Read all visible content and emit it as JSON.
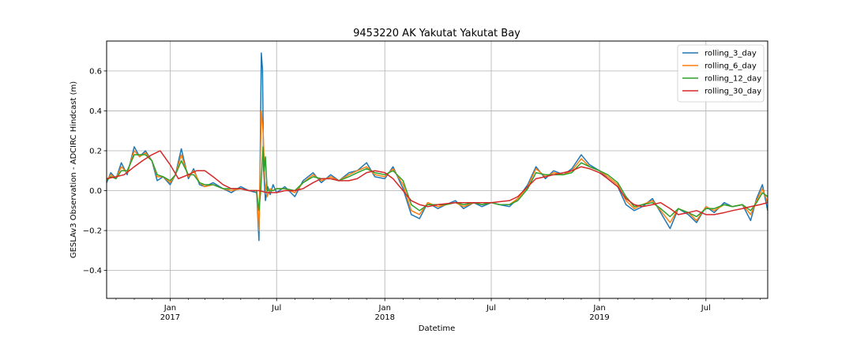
{
  "chart_data": {
    "type": "line",
    "title": "9453220 AK Yakutat Yakutat Bay",
    "xlabel": "Datetime",
    "ylabel": "GESLAv3 Observation - ADCIRC Hindcast (m)",
    "xlim": [
      "2016-09-15",
      "2019-10-14"
    ],
    "ylim": [
      -0.54,
      0.75
    ],
    "grid": true,
    "legend_position": "top-right",
    "x_ticks": [
      {
        "date": "2017-01-01",
        "label": "Jan",
        "year": "2017"
      },
      {
        "date": "2017-07-01",
        "label": "Jul",
        "year": ""
      },
      {
        "date": "2018-01-01",
        "label": "Jan",
        "year": "2018"
      },
      {
        "date": "2018-07-01",
        "label": "Jul",
        "year": ""
      },
      {
        "date": "2019-01-01",
        "label": "Jan",
        "year": "2019"
      },
      {
        "date": "2019-07-01",
        "label": "Jul",
        "year": ""
      }
    ],
    "y_ticks": [
      {
        "value": 0.6,
        "label": "0.6"
      },
      {
        "value": 0.4,
        "label": "0.4"
      },
      {
        "value": 0.2,
        "label": "0.2"
      },
      {
        "value": 0.0,
        "label": "0.0"
      },
      {
        "value": -0.2,
        "label": "−0.2"
      },
      {
        "value": -0.4,
        "label": "−0.4"
      }
    ],
    "series": [
      {
        "name": "rolling_3_day",
        "color": "#1f77b4",
        "x": [
          "2016-09-15",
          "2016-09-22",
          "2016-10-01",
          "2016-10-10",
          "2016-10-20",
          "2016-11-01",
          "2016-11-10",
          "2016-11-20",
          "2016-12-01",
          "2016-12-10",
          "2016-12-20",
          "2017-01-01",
          "2017-01-10",
          "2017-01-20",
          "2017-02-01",
          "2017-02-10",
          "2017-02-20",
          "2017-03-01",
          "2017-03-15",
          "2017-04-01",
          "2017-04-15",
          "2017-05-01",
          "2017-05-15",
          "2017-05-28",
          "2017-06-01",
          "2017-06-03",
          "2017-06-05",
          "2017-06-07",
          "2017-06-09",
          "2017-06-12",
          "2017-06-16",
          "2017-06-20",
          "2017-06-25",
          "2017-07-01",
          "2017-07-15",
          "2017-08-01",
          "2017-08-15",
          "2017-09-01",
          "2017-09-15",
          "2017-10-01",
          "2017-10-15",
          "2017-11-01",
          "2017-11-15",
          "2017-12-01",
          "2017-12-15",
          "2018-01-01",
          "2018-01-15",
          "2018-02-01",
          "2018-02-15",
          "2018-03-01",
          "2018-03-15",
          "2018-04-01",
          "2018-04-15",
          "2018-05-01",
          "2018-05-15",
          "2018-06-01",
          "2018-06-15",
          "2018-07-01",
          "2018-07-15",
          "2018-08-01",
          "2018-08-15",
          "2018-09-01",
          "2018-09-15",
          "2018-10-01",
          "2018-10-15",
          "2018-11-01",
          "2018-11-15",
          "2018-12-01",
          "2018-12-15",
          "2019-01-01",
          "2019-01-15",
          "2019-02-01",
          "2019-02-15",
          "2019-03-01",
          "2019-03-15",
          "2019-04-01",
          "2019-04-15",
          "2019-05-01",
          "2019-05-15",
          "2019-06-01",
          "2019-06-15",
          "2019-07-01",
          "2019-07-15",
          "2019-08-01",
          "2019-08-15",
          "2019-09-01",
          "2019-09-15",
          "2019-09-25",
          "2019-10-05",
          "2019-10-14"
        ],
        "y": [
          0.04,
          0.09,
          0.06,
          0.14,
          0.08,
          0.22,
          0.17,
          0.2,
          0.15,
          0.05,
          0.07,
          0.03,
          0.08,
          0.21,
          0.06,
          0.11,
          0.03,
          0.02,
          0.04,
          0.01,
          -0.01,
          0.02,
          0.0,
          -0.01,
          -0.25,
          0.15,
          0.69,
          0.61,
          0.1,
          -0.05,
          0.02,
          -0.02,
          0.03,
          -0.01,
          0.02,
          -0.03,
          0.05,
          0.09,
          0.04,
          0.08,
          0.05,
          0.09,
          0.1,
          0.14,
          0.07,
          0.06,
          0.12,
          0.01,
          -0.12,
          -0.14,
          -0.06,
          -0.09,
          -0.07,
          -0.05,
          -0.09,
          -0.06,
          -0.08,
          -0.06,
          -0.07,
          -0.08,
          -0.04,
          0.03,
          0.12,
          0.06,
          0.1,
          0.08,
          0.11,
          0.18,
          0.13,
          0.1,
          0.06,
          0.02,
          -0.07,
          -0.1,
          -0.08,
          -0.04,
          -0.11,
          -0.19,
          -0.09,
          -0.12,
          -0.16,
          -0.08,
          -0.11,
          -0.06,
          -0.08,
          -0.07,
          -0.15,
          -0.04,
          0.03,
          -0.1
        ]
      },
      {
        "name": "rolling_6_day",
        "color": "#ff7f0e",
        "x": [
          "2016-09-15",
          "2016-09-22",
          "2016-10-01",
          "2016-10-10",
          "2016-10-20",
          "2016-11-01",
          "2016-11-10",
          "2016-11-20",
          "2016-12-01",
          "2016-12-10",
          "2016-12-20",
          "2017-01-01",
          "2017-01-10",
          "2017-01-20",
          "2017-02-01",
          "2017-02-10",
          "2017-02-20",
          "2017-03-01",
          "2017-03-15",
          "2017-04-01",
          "2017-04-15",
          "2017-05-01",
          "2017-05-15",
          "2017-05-28",
          "2017-06-01",
          "2017-06-03",
          "2017-06-05",
          "2017-06-08",
          "2017-06-11",
          "2017-06-15",
          "2017-06-20",
          "2017-06-25",
          "2017-07-01",
          "2017-07-15",
          "2017-08-01",
          "2017-08-15",
          "2017-09-01",
          "2017-09-15",
          "2017-10-01",
          "2017-10-15",
          "2017-11-01",
          "2017-11-15",
          "2017-12-01",
          "2017-12-15",
          "2018-01-01",
          "2018-01-15",
          "2018-02-01",
          "2018-02-15",
          "2018-03-01",
          "2018-03-15",
          "2018-04-01",
          "2018-04-15",
          "2018-05-01",
          "2018-05-15",
          "2018-06-01",
          "2018-06-15",
          "2018-07-01",
          "2018-07-15",
          "2018-08-01",
          "2018-08-15",
          "2018-09-01",
          "2018-09-15",
          "2018-10-01",
          "2018-10-15",
          "2018-11-01",
          "2018-11-15",
          "2018-12-01",
          "2018-12-15",
          "2019-01-01",
          "2019-01-15",
          "2019-02-01",
          "2019-02-15",
          "2019-03-01",
          "2019-03-15",
          "2019-04-01",
          "2019-04-15",
          "2019-05-01",
          "2019-05-15",
          "2019-06-01",
          "2019-06-15",
          "2019-07-01",
          "2019-07-15",
          "2019-08-01",
          "2019-08-15",
          "2019-09-01",
          "2019-09-15",
          "2019-09-25",
          "2019-10-05",
          "2019-10-14"
        ],
        "y": [
          0.05,
          0.08,
          0.06,
          0.12,
          0.09,
          0.2,
          0.17,
          0.19,
          0.15,
          0.07,
          0.07,
          0.04,
          0.08,
          0.18,
          0.07,
          0.1,
          0.04,
          0.02,
          0.03,
          0.01,
          0.0,
          0.01,
          0.0,
          0.0,
          -0.2,
          0.1,
          0.4,
          0.3,
          0.05,
          -0.03,
          0.01,
          0.0,
          0.01,
          0.01,
          -0.01,
          0.04,
          0.08,
          0.05,
          0.07,
          0.05,
          0.08,
          0.1,
          0.12,
          0.08,
          0.07,
          0.11,
          0.03,
          -0.1,
          -0.12,
          -0.06,
          -0.08,
          -0.07,
          -0.06,
          -0.08,
          -0.06,
          -0.07,
          -0.06,
          -0.07,
          -0.07,
          -0.04,
          0.02,
          0.11,
          0.07,
          0.09,
          0.08,
          0.1,
          0.16,
          0.12,
          0.1,
          0.07,
          0.03,
          -0.05,
          -0.09,
          -0.07,
          -0.05,
          -0.1,
          -0.16,
          -0.09,
          -0.11,
          -0.15,
          -0.08,
          -0.1,
          -0.07,
          -0.08,
          -0.07,
          -0.12,
          -0.05,
          0.01,
          -0.06
        ]
      },
      {
        "name": "rolling_12_day",
        "color": "#2ca02c",
        "x": [
          "2016-09-15",
          "2016-09-22",
          "2016-10-01",
          "2016-10-10",
          "2016-10-20",
          "2016-11-01",
          "2016-11-10",
          "2016-11-20",
          "2016-12-01",
          "2016-12-10",
          "2016-12-20",
          "2017-01-01",
          "2017-01-10",
          "2017-01-20",
          "2017-02-01",
          "2017-02-10",
          "2017-02-20",
          "2017-03-01",
          "2017-03-15",
          "2017-04-01",
          "2017-04-15",
          "2017-05-01",
          "2017-05-15",
          "2017-05-28",
          "2017-06-01",
          "2017-06-04",
          "2017-06-08",
          "2017-06-10",
          "2017-06-12",
          "2017-06-15",
          "2017-06-20",
          "2017-06-25",
          "2017-07-01",
          "2017-07-15",
          "2017-08-01",
          "2017-08-15",
          "2017-09-01",
          "2017-09-15",
          "2017-10-01",
          "2017-10-15",
          "2017-11-01",
          "2017-11-15",
          "2017-12-01",
          "2017-12-15",
          "2018-01-01",
          "2018-01-15",
          "2018-02-01",
          "2018-02-15",
          "2018-03-01",
          "2018-03-15",
          "2018-04-01",
          "2018-04-15",
          "2018-05-01",
          "2018-05-15",
          "2018-06-01",
          "2018-06-15",
          "2018-07-01",
          "2018-07-15",
          "2018-08-01",
          "2018-08-15",
          "2018-09-01",
          "2018-09-15",
          "2018-10-01",
          "2018-10-15",
          "2018-11-01",
          "2018-11-15",
          "2018-12-01",
          "2018-12-15",
          "2019-01-01",
          "2019-01-15",
          "2019-02-01",
          "2019-02-15",
          "2019-03-01",
          "2019-03-15",
          "2019-04-01",
          "2019-04-15",
          "2019-05-01",
          "2019-05-15",
          "2019-06-01",
          "2019-06-15",
          "2019-07-01",
          "2019-07-15",
          "2019-08-01",
          "2019-08-15",
          "2019-09-01",
          "2019-09-15",
          "2019-09-25",
          "2019-10-05",
          "2019-10-14"
        ],
        "y": [
          0.05,
          0.07,
          0.06,
          0.1,
          0.1,
          0.18,
          0.18,
          0.18,
          0.15,
          0.08,
          0.07,
          0.05,
          0.08,
          0.15,
          0.08,
          0.08,
          0.04,
          0.03,
          0.03,
          0.01,
          0.01,
          0.01,
          0.0,
          0.0,
          -0.1,
          0.0,
          0.22,
          0.1,
          0.17,
          0.0,
          0.0,
          0.0,
          0.01,
          0.01,
          0.0,
          0.04,
          0.07,
          0.06,
          0.06,
          0.05,
          0.07,
          0.09,
          0.11,
          0.09,
          0.08,
          0.1,
          0.05,
          -0.07,
          -0.1,
          -0.07,
          -0.07,
          -0.07,
          -0.06,
          -0.07,
          -0.06,
          -0.07,
          -0.06,
          -0.07,
          -0.07,
          -0.05,
          0.01,
          0.09,
          0.08,
          0.08,
          0.08,
          0.09,
          0.14,
          0.12,
          0.1,
          0.08,
          0.04,
          -0.03,
          -0.08,
          -0.07,
          -0.06,
          -0.09,
          -0.13,
          -0.09,
          -0.11,
          -0.13,
          -0.09,
          -0.09,
          -0.07,
          -0.08,
          -0.07,
          -0.1,
          -0.06,
          -0.01,
          -0.03
        ]
      },
      {
        "name": "rolling_30_day",
        "color": "#d62728",
        "x": [
          "2016-09-15",
          "2016-10-01",
          "2016-10-15",
          "2016-11-01",
          "2016-11-15",
          "2016-12-01",
          "2016-12-15",
          "2017-01-01",
          "2017-01-15",
          "2017-02-01",
          "2017-02-15",
          "2017-03-01",
          "2017-03-15",
          "2017-04-01",
          "2017-04-15",
          "2017-05-01",
          "2017-05-15",
          "2017-06-01",
          "2017-06-15",
          "2017-07-01",
          "2017-07-15",
          "2017-08-01",
          "2017-08-15",
          "2017-09-01",
          "2017-09-15",
          "2017-10-01",
          "2017-10-15",
          "2017-11-01",
          "2017-11-15",
          "2017-12-01",
          "2017-12-15",
          "2018-01-01",
          "2018-01-15",
          "2018-02-01",
          "2018-02-15",
          "2018-03-01",
          "2018-03-15",
          "2018-04-01",
          "2018-05-01",
          "2018-06-01",
          "2018-07-01",
          "2018-08-01",
          "2018-08-15",
          "2018-09-01",
          "2018-09-15",
          "2018-10-01",
          "2018-10-15",
          "2018-11-01",
          "2018-11-15",
          "2018-12-01",
          "2018-12-15",
          "2019-01-01",
          "2019-01-15",
          "2019-02-01",
          "2019-02-15",
          "2019-03-01",
          "2019-03-15",
          "2019-04-01",
          "2019-04-15",
          "2019-05-01",
          "2019-05-15",
          "2019-06-01",
          "2019-06-15",
          "2019-07-01",
          "2019-07-15",
          "2019-08-01",
          "2019-08-15",
          "2019-09-01",
          "2019-09-15",
          "2019-10-01",
          "2019-10-14"
        ],
        "y": [
          0.06,
          0.07,
          0.08,
          0.12,
          0.15,
          0.18,
          0.2,
          0.13,
          0.06,
          0.08,
          0.1,
          0.1,
          0.07,
          0.03,
          0.01,
          0.01,
          0.0,
          0.0,
          -0.01,
          -0.01,
          0.0,
          0.0,
          0.01,
          0.04,
          0.06,
          0.06,
          0.05,
          0.05,
          0.06,
          0.09,
          0.1,
          0.09,
          0.06,
          0.0,
          -0.05,
          -0.07,
          -0.08,
          -0.07,
          -0.06,
          -0.06,
          -0.06,
          -0.05,
          -0.03,
          0.02,
          0.06,
          0.07,
          0.08,
          0.09,
          0.1,
          0.12,
          0.11,
          0.09,
          0.06,
          0.02,
          -0.04,
          -0.07,
          -0.08,
          -0.07,
          -0.06,
          -0.09,
          -0.12,
          -0.11,
          -0.1,
          -0.12,
          -0.12,
          -0.11,
          -0.1,
          -0.09,
          -0.08,
          -0.07,
          -0.06
        ]
      }
    ]
  }
}
